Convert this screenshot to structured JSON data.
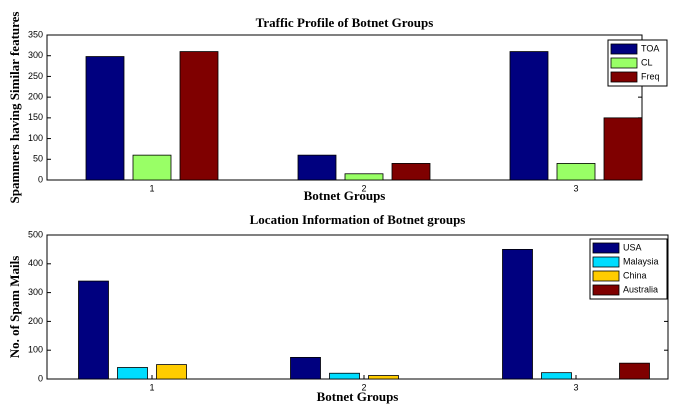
{
  "chart_data": [
    {
      "type": "bar",
      "title": "Traffic Profile of Botnet Groups",
      "x_label": "Botnet Groups",
      "y_label": "Spammers having Similar features",
      "categories": [
        "1",
        "2",
        "3"
      ],
      "series": [
        {
          "name": "TOA",
          "color": "#00007f",
          "values": [
            298,
            60,
            310
          ]
        },
        {
          "name": "CL",
          "color": "#99ff66",
          "values": [
            60,
            15,
            40
          ]
        },
        {
          "name": "Freq",
          "color": "#7f0000",
          "values": [
            310,
            40,
            150
          ]
        }
      ],
      "ylim": [
        0,
        350
      ],
      "yticks": [
        0,
        50,
        100,
        150,
        200,
        250,
        300,
        350
      ],
      "legend": "upper right"
    },
    {
      "type": "bar",
      "title": "Location Information of Botnet groups",
      "x_label": "Botnet Groups",
      "y_label": "No. of Spam Mails",
      "categories": [
        "1",
        "2",
        "3"
      ],
      "series": [
        {
          "name": "USA",
          "color": "#00007f",
          "values": [
            340,
            75,
            450
          ]
        },
        {
          "name": "Malaysia",
          "color": "#00ddff",
          "values": [
            40,
            20,
            22
          ]
        },
        {
          "name": "China",
          "color": "#ffcc00",
          "values": [
            50,
            12,
            0
          ]
        },
        {
          "name": "Australia",
          "color": "#7f0000",
          "values": [
            0,
            0,
            55
          ]
        }
      ],
      "ylim": [
        0,
        500
      ],
      "yticks": [
        0,
        100,
        200,
        300,
        400,
        500
      ],
      "legend": "upper right"
    }
  ]
}
